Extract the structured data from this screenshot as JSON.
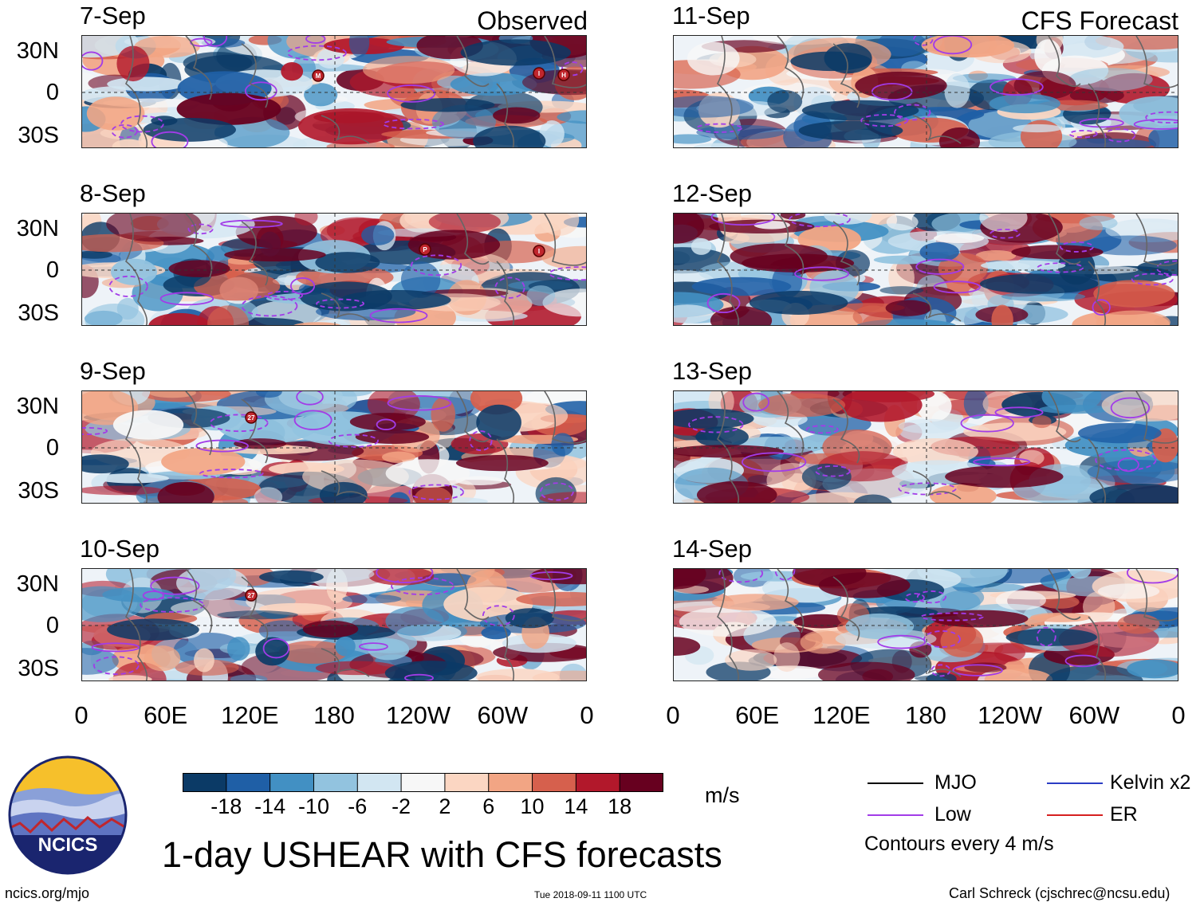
{
  "observed_label": "Observed",
  "forecast_label": "CFS Forecast",
  "observed_dates": [
    "7-Sep",
    "8-Sep",
    "9-Sep",
    "10-Sep"
  ],
  "forecast_dates": [
    "11-Sep",
    "12-Sep",
    "13-Sep",
    "14-Sep"
  ],
  "lat_labels": [
    "30N",
    "0",
    "30S"
  ],
  "lon_labels": [
    "0",
    "60E",
    "120E",
    "180",
    "120W",
    "60W",
    "0"
  ],
  "storm_markers": {
    "7-Sep": [
      "M",
      "I",
      "H"
    ],
    "8-Sep": [
      "P",
      "I"
    ],
    "9-Sep": [
      "27"
    ],
    "10-Sep": [
      "27"
    ]
  },
  "colorbar": {
    "ticks": [
      "-18",
      "-14",
      "-10",
      "-6",
      "-2",
      "2",
      "6",
      "10",
      "14",
      "18"
    ],
    "colors": [
      "#0b3a66",
      "#1f5fa6",
      "#4290c3",
      "#92c3df",
      "#d2e6f2",
      "#f7f7f7",
      "#fbd6c2",
      "#f2a584",
      "#d6604d",
      "#b2182b",
      "#67001f"
    ],
    "unit": "m/s"
  },
  "legend": {
    "items": [
      {
        "label": "MJO",
        "color": "#000000"
      },
      {
        "label": "Kelvin x2",
        "color": "#2b3dc4"
      },
      {
        "label": "Low",
        "color": "#a23ce8"
      },
      {
        "label": "ER",
        "color": "#d62020"
      }
    ],
    "contours_note": "Contours every 4 m/s"
  },
  "logo_text": "NCICS",
  "title": "1-day USHEAR with CFS forecasts",
  "footer": {
    "left": "ncics.org/mjo",
    "center": "Tue 2018-09-11 1100 UTC",
    "right": "Carl Schreck (cjschrec@ncsu.edu)"
  }
}
